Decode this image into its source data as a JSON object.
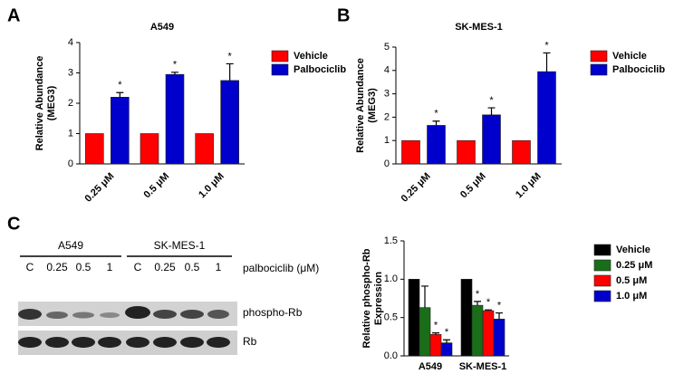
{
  "chart_data": [
    {
      "type": "bar",
      "panel": "A",
      "title": "A549",
      "y_label": [
        "Relative Abundance",
        "(MEG3)"
      ],
      "categories": [
        "0.25 μM",
        "0.5 μM",
        "1.0 μM"
      ],
      "series": [
        {
          "name": "Vehicle",
          "color": "#ff0000",
          "values": [
            1,
            1,
            1
          ],
          "errors": [
            0,
            0,
            0
          ],
          "annotations": [
            null,
            null,
            null
          ]
        },
        {
          "name": "Palbociclib",
          "color": "#0000cc",
          "values": [
            2.2,
            2.95,
            2.75
          ],
          "errors": [
            0.15,
            0.07,
            0.55
          ],
          "annotations": [
            "*",
            "*",
            "*"
          ]
        }
      ],
      "ylim": [
        0,
        4
      ],
      "yticks": [
        0,
        1,
        2,
        3,
        4
      ]
    },
    {
      "type": "bar",
      "panel": "B",
      "title": "SK-MES-1",
      "y_label": [
        "Relative Abundance",
        "(MEG3)"
      ],
      "categories": [
        "0.25 μM",
        "0.5 μM",
        "1.0 μM"
      ],
      "series": [
        {
          "name": "Vehicle",
          "color": "#ff0000",
          "values": [
            1,
            1,
            1
          ],
          "errors": [
            0,
            0,
            0
          ],
          "annotations": [
            null,
            null,
            null
          ]
        },
        {
          "name": "Palbociclib",
          "color": "#0000cc",
          "values": [
            1.65,
            2.1,
            3.95
          ],
          "errors": [
            0.18,
            0.3,
            0.8
          ],
          "annotations": [
            "*",
            "*",
            "*"
          ]
        }
      ],
      "ylim": [
        0,
        5
      ],
      "yticks": [
        0,
        1,
        2,
        3,
        4,
        5
      ]
    },
    {
      "type": "bar",
      "panel": "C",
      "y_label": [
        "Relative phospho-Rb",
        "Expression"
      ],
      "categories": [
        "A549",
        "SK-MES-1"
      ],
      "series": [
        {
          "name": "Vehicle",
          "color": "#000000",
          "values": [
            1,
            1
          ],
          "errors": [
            0,
            0
          ],
          "annotations": [
            null,
            null
          ]
        },
        {
          "name": "0.25 μM",
          "color": "#1a6e1a",
          "values": [
            0.63,
            0.66
          ],
          "errors": [
            0.28,
            0.05
          ],
          "annotations": [
            null,
            "*"
          ]
        },
        {
          "name": "0.5 μM",
          "color": "#ff0000",
          "values": [
            0.28,
            0.59
          ],
          "errors": [
            0.02,
            0.01
          ],
          "annotations": [
            "*",
            "*"
          ]
        },
        {
          "name": "1.0 μM",
          "color": "#0000cc",
          "values": [
            0.17,
            0.48
          ],
          "errors": [
            0.04,
            0.08
          ],
          "annotations": [
            "*",
            "*"
          ]
        }
      ],
      "ylim": [
        0,
        1.5
      ],
      "yticks": [
        {
          "value": 0,
          "label": "0.0"
        },
        0.5,
        {
          "value": 1,
          "label": "1.0"
        },
        1.5
      ]
    }
  ],
  "blot": {
    "cell_lines": [
      "A549",
      "SK-MES-1"
    ],
    "treatment": "palbociclib (μM)",
    "lanes": [
      "C",
      "0.25",
      "0.5",
      "1",
      "C",
      "0.25",
      "0.5",
      "1"
    ],
    "rows": [
      "phospho-Rb",
      "Rb"
    ]
  }
}
